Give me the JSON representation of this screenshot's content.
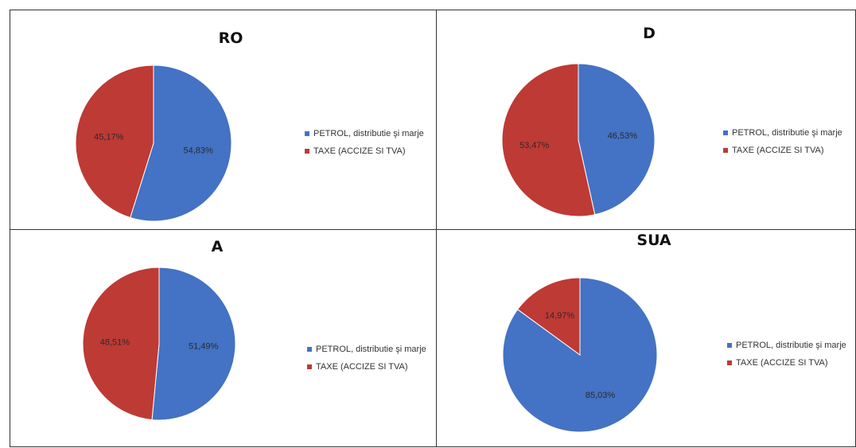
{
  "colors": {
    "petrol": "#4472c4",
    "taxe": "#be3a35"
  },
  "chart_data": [
    {
      "type": "pie",
      "title": "RO",
      "categories": [
        "PETROL, distributie şi marje",
        "TAXE (ACCIZE SI TVA)"
      ],
      "values": [
        54.83,
        45.17
      ],
      "labels": [
        "54,83%",
        "45,17%"
      ],
      "legend": "right"
    },
    {
      "type": "pie",
      "title": "D",
      "categories": [
        "PETROL, distributie şi marje",
        "TAXE (ACCIZE SI TVA)"
      ],
      "values": [
        46.53,
        53.47
      ],
      "labels": [
        "46,53%",
        "53,47%"
      ],
      "legend": "right"
    },
    {
      "type": "pie",
      "title": "A",
      "categories": [
        "PETROL, distributie şi marje",
        "TAXE (ACCIZE SI TVA)"
      ],
      "values": [
        51.49,
        48.51
      ],
      "labels": [
        "51,49%",
        "48,51%"
      ],
      "legend": "right"
    },
    {
      "type": "pie",
      "title": "SUA",
      "categories": [
        "PETROL, distributie şi marje",
        "TAXE (ACCIZE SI TVA)"
      ],
      "values": [
        85.03,
        14.97
      ],
      "labels": [
        "85,03%",
        "14,97%"
      ],
      "legend": "right"
    }
  ]
}
